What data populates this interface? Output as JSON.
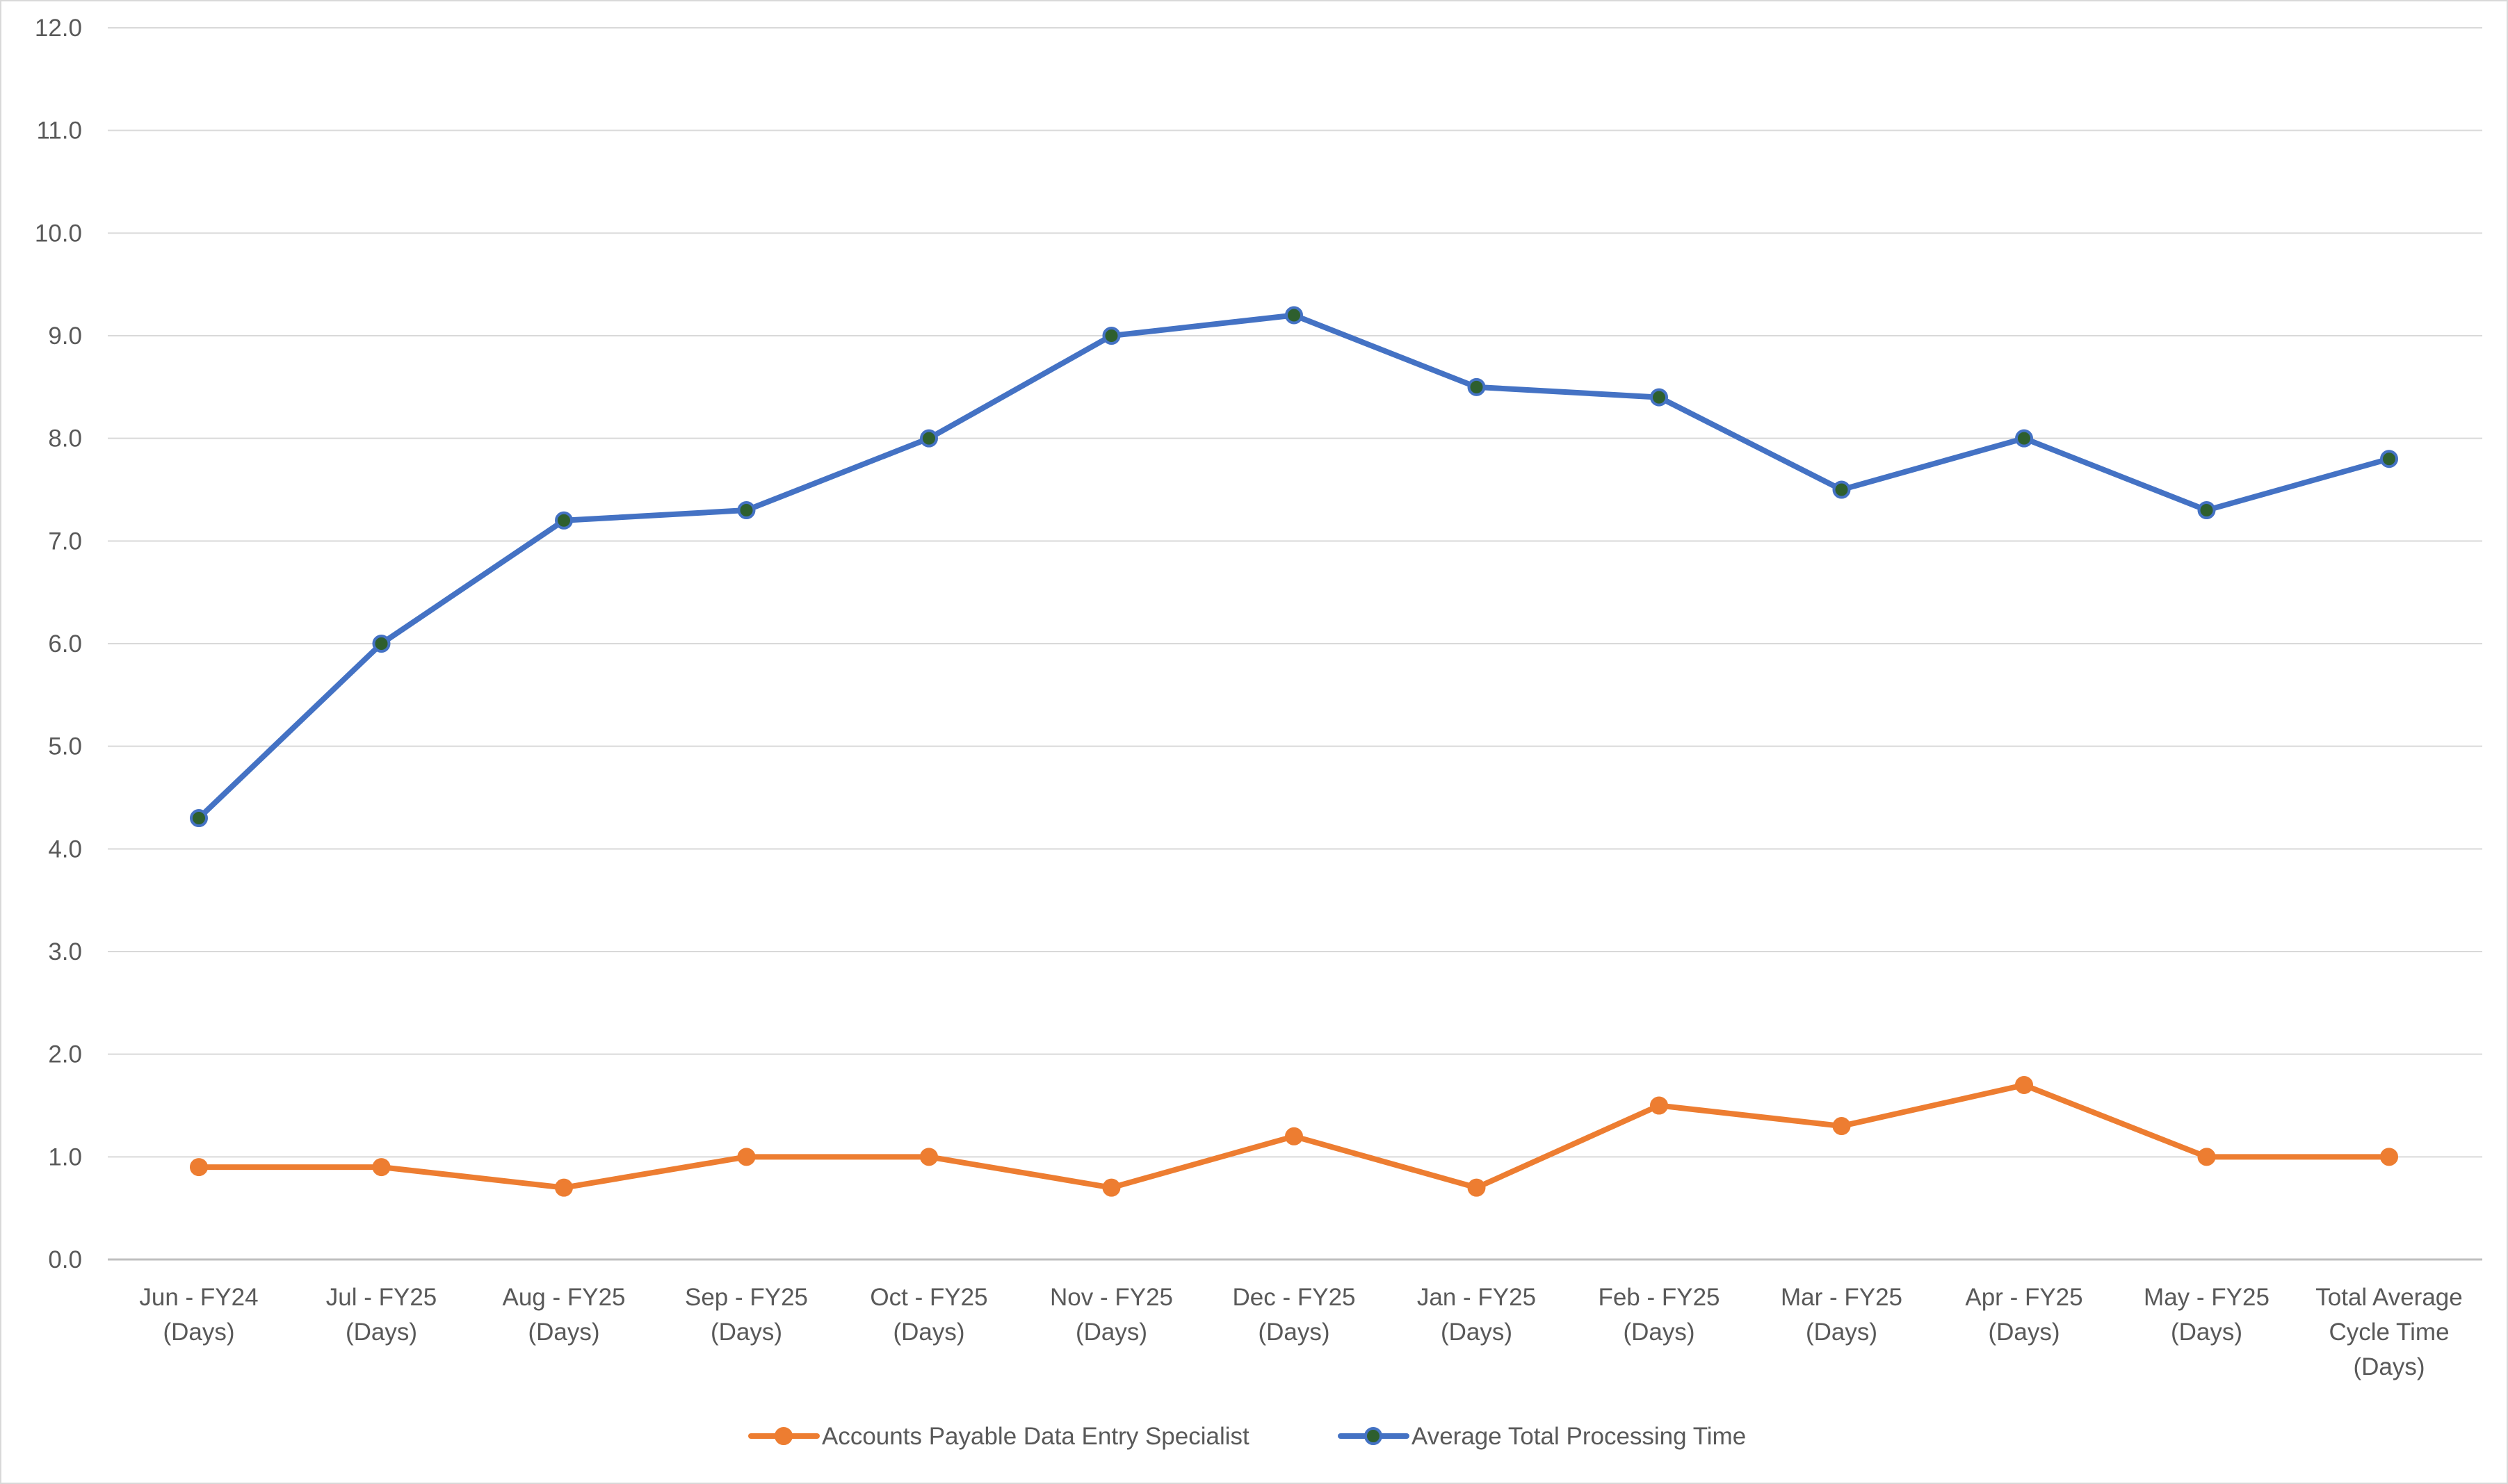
{
  "chart_data": {
    "type": "line",
    "title": "",
    "xlabel": "",
    "ylabel": "",
    "ylim": [
      0,
      12
    ],
    "yticks": [
      "0.0",
      "1.0",
      "2.0",
      "3.0",
      "4.0",
      "5.0",
      "6.0",
      "7.0",
      "8.0",
      "9.0",
      "10.0",
      "11.0",
      "12.0"
    ],
    "grid": true,
    "legend": "bottom",
    "categories": [
      [
        "Jun - FY24",
        "(Days)"
      ],
      [
        "Jul - FY25",
        "(Days)"
      ],
      [
        "Aug - FY25",
        "(Days)"
      ],
      [
        "Sep - FY25",
        "(Days)"
      ],
      [
        "Oct - FY25",
        "(Days)"
      ],
      [
        "Nov - FY25",
        "(Days)"
      ],
      [
        "Dec - FY25",
        "(Days)"
      ],
      [
        "Jan - FY25",
        "(Days)"
      ],
      [
        "Feb - FY25",
        "(Days)"
      ],
      [
        "Mar - FY25",
        "(Days)"
      ],
      [
        "Apr - FY25",
        "(Days)"
      ],
      [
        "May - FY25",
        "(Days)"
      ],
      [
        "Total Average",
        "Cycle Time",
        "(Days)"
      ]
    ],
    "series": [
      {
        "name": "Accounts Payable Data Entry Specialist",
        "color": "#ed7d31",
        "marker_fill": "#ed7d31",
        "values": [
          0.9,
          0.9,
          0.7,
          1.0,
          1.0,
          0.7,
          1.2,
          0.7,
          1.5,
          1.3,
          1.7,
          1.0,
          1.0
        ]
      },
      {
        "name": "Average Total Processing Time",
        "color": "#4472c4",
        "marker_fill": "#2e5f2e",
        "values": [
          4.3,
          6.0,
          7.2,
          7.3,
          8.0,
          9.0,
          9.2,
          8.5,
          8.4,
          7.5,
          8.0,
          7.3,
          7.8
        ]
      }
    ]
  }
}
